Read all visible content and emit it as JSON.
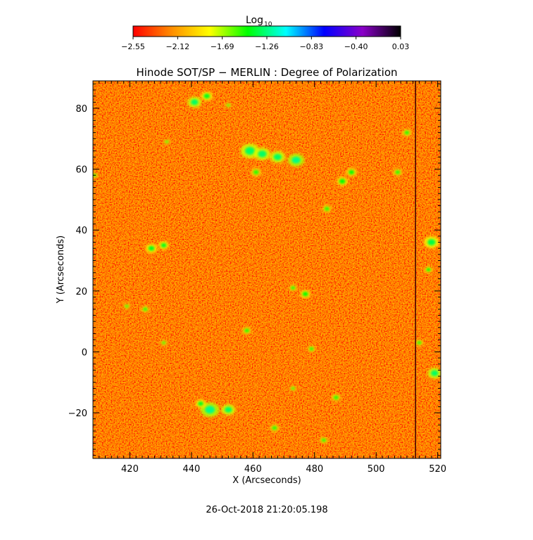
{
  "chart_data": {
    "type": "heatmap",
    "title": "Hinode SOT/SP − MERLIN : Degree of Polarization",
    "xlabel": "X (Arcseconds)",
    "ylabel": "Y (Arcseconds)",
    "xlim": [
      408,
      521
    ],
    "ylim": [
      -35,
      89
    ],
    "x_ticks": [
      420,
      440,
      460,
      480,
      500,
      520
    ],
    "y_ticks": [
      -20,
      0,
      20,
      40,
      60,
      80
    ],
    "colorbar": {
      "label_main": "Log",
      "label_sub": "10",
      "range": [
        -2.55,
        0.03
      ],
      "ticks": [
        "−2.55",
        "−2.12",
        "−1.69",
        "−1.26",
        "−0.83",
        "−0.40",
        "0.03"
      ],
      "colors": [
        "#ff0000",
        "#ff8c00",
        "#ffff00",
        "#00ff00",
        "#00ffff",
        "#0000ff",
        "#8a00c8",
        "#000000"
      ]
    },
    "background_level": -2.45,
    "gap_x": 512.8,
    "features": [
      {
        "x": 441,
        "y": 82,
        "r": 1.2,
        "value": -1.3
      },
      {
        "x": 445,
        "y": 84,
        "r": 1.0,
        "value": -1.4
      },
      {
        "x": 459,
        "y": 66,
        "r": 1.6,
        "value": -1.3
      },
      {
        "x": 463,
        "y": 65,
        "r": 1.4,
        "value": -1.3
      },
      {
        "x": 468,
        "y": 64,
        "r": 1.3,
        "value": -1.3
      },
      {
        "x": 474,
        "y": 63,
        "r": 1.4,
        "value": -1.25
      },
      {
        "x": 461,
        "y": 59,
        "r": 0.9,
        "value": -1.5
      },
      {
        "x": 489,
        "y": 56,
        "r": 1.0,
        "value": -1.45
      },
      {
        "x": 492,
        "y": 59,
        "r": 0.9,
        "value": -1.45
      },
      {
        "x": 484,
        "y": 47,
        "r": 0.8,
        "value": -1.5
      },
      {
        "x": 427,
        "y": 34,
        "r": 1.0,
        "value": -1.4
      },
      {
        "x": 431,
        "y": 35,
        "r": 0.9,
        "value": -1.4
      },
      {
        "x": 477,
        "y": 19,
        "r": 0.9,
        "value": -1.45
      },
      {
        "x": 473,
        "y": 21,
        "r": 0.7,
        "value": -1.5
      },
      {
        "x": 458,
        "y": 7,
        "r": 0.8,
        "value": -1.5
      },
      {
        "x": 479,
        "y": 1,
        "r": 0.7,
        "value": -1.5
      },
      {
        "x": 425,
        "y": 14,
        "r": 0.7,
        "value": -1.5
      },
      {
        "x": 419,
        "y": 15,
        "r": 0.6,
        "value": -1.55
      },
      {
        "x": 431,
        "y": 3,
        "r": 0.6,
        "value": -1.55
      },
      {
        "x": 446,
        "y": -19,
        "r": 1.6,
        "value": -1.25
      },
      {
        "x": 452,
        "y": -19,
        "r": 1.2,
        "value": -1.3
      },
      {
        "x": 443,
        "y": -17,
        "r": 0.9,
        "value": -1.4
      },
      {
        "x": 467,
        "y": -25,
        "r": 0.8,
        "value": -1.5
      },
      {
        "x": 483,
        "y": -29,
        "r": 0.7,
        "value": -1.5
      },
      {
        "x": 487,
        "y": -15,
        "r": 0.8,
        "value": -1.5
      },
      {
        "x": 473,
        "y": -12,
        "r": 0.6,
        "value": -1.55
      },
      {
        "x": 518,
        "y": 36,
        "r": 1.3,
        "value": -1.35
      },
      {
        "x": 517,
        "y": 27,
        "r": 0.7,
        "value": -1.45
      },
      {
        "x": 519,
        "y": -7,
        "r": 1.2,
        "value": -1.3
      },
      {
        "x": 514,
        "y": 3,
        "r": 0.7,
        "value": -1.5
      },
      {
        "x": 510,
        "y": 72,
        "r": 0.8,
        "value": -1.5
      },
      {
        "x": 507,
        "y": 59,
        "r": 0.8,
        "value": -1.5
      },
      {
        "x": 408.5,
        "y": 58,
        "r": 0.6,
        "value": -1.55
      },
      {
        "x": 432,
        "y": 69,
        "r": 0.6,
        "value": -1.6
      },
      {
        "x": 452,
        "y": 81,
        "r": 0.6,
        "value": -1.6
      }
    ],
    "annotation": "26-Oct-2018 21:20:05.198"
  }
}
